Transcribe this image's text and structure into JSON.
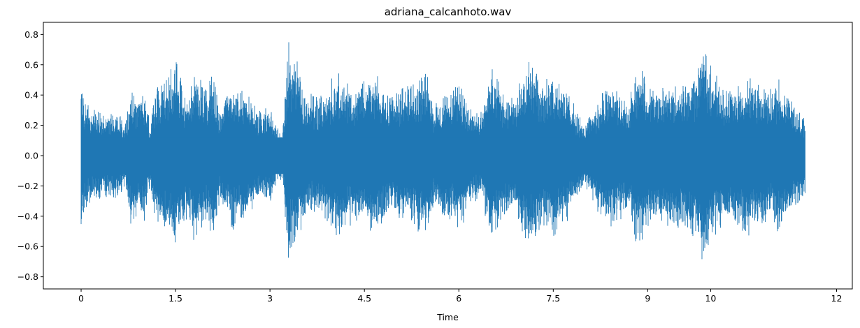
{
  "chart_data": {
    "type": "area",
    "title": "adriana_calcanhoto.wav",
    "xlabel": "Time",
    "ylabel": "",
    "xlim": [
      -0.6,
      12.25
    ],
    "ylim": [
      -0.88,
      0.88
    ],
    "xticks": [
      0,
      1.5,
      3,
      4.5,
      6,
      7.5,
      9,
      10,
      12
    ],
    "xtick_labels": [
      "0",
      "1.5",
      "3",
      "4.5",
      "6",
      "7.5",
      "9",
      "10",
      "12"
    ],
    "yticks": [
      0.8,
      0.6,
      0.4,
      0.2,
      0.0,
      -0.2,
      -0.4,
      -0.6,
      -0.8
    ],
    "ytick_labels": [
      "0.8",
      "0.6",
      "0.4",
      "0.2",
      "0.0",
      "−0.2",
      "−0.4",
      "−0.6",
      "−0.8"
    ],
    "color": "#1f77b4",
    "grid": false,
    "series": [
      {
        "x": [
          0.0,
          0.1,
          0.3,
          0.5,
          0.7,
          0.8,
          0.85,
          1.0,
          1.1,
          1.15,
          1.3,
          1.5,
          1.6,
          1.7,
          1.8,
          2.0,
          2.1,
          2.2,
          2.4,
          2.5,
          2.7,
          2.8,
          3.0,
          3.1,
          3.2,
          3.3,
          3.35,
          3.4,
          3.5,
          3.7,
          3.9,
          4.1,
          4.3,
          4.5,
          4.7,
          4.9,
          5.1,
          5.3,
          5.5,
          5.6,
          5.8,
          6.0,
          6.2,
          6.3,
          6.35,
          6.5,
          6.7,
          6.9,
          7.1,
          7.3,
          7.5,
          7.7,
          7.9,
          8.0,
          8.1,
          8.3,
          8.5,
          8.7,
          8.8,
          8.9,
          9.0,
          9.2,
          9.4,
          9.6,
          9.8,
          9.9,
          10.0,
          10.2,
          10.4,
          10.6,
          10.8,
          11.0,
          11.1,
          11.2,
          11.3,
          11.5
        ],
        "upper": [
          0.5,
          0.35,
          0.3,
          0.3,
          0.25,
          0.5,
          0.4,
          0.45,
          0.2,
          0.45,
          0.5,
          0.65,
          0.5,
          0.4,
          0.6,
          0.45,
          0.6,
          0.3,
          0.5,
          0.45,
          0.4,
          0.3,
          0.35,
          0.2,
          0.15,
          0.8,
          0.6,
          0.7,
          0.5,
          0.4,
          0.45,
          0.6,
          0.45,
          0.5,
          0.55,
          0.4,
          0.45,
          0.5,
          0.55,
          0.35,
          0.45,
          0.5,
          0.35,
          0.3,
          0.3,
          0.6,
          0.45,
          0.4,
          0.65,
          0.5,
          0.55,
          0.45,
          0.3,
          0.2,
          0.3,
          0.45,
          0.5,
          0.35,
          0.6,
          0.6,
          0.5,
          0.45,
          0.55,
          0.5,
          0.6,
          0.8,
          0.6,
          0.45,
          0.5,
          0.55,
          0.5,
          0.45,
          0.55,
          0.45,
          0.4,
          0.25
        ],
        "lower": [
          -0.5,
          -0.35,
          -0.3,
          -0.3,
          -0.25,
          -0.5,
          -0.4,
          -0.45,
          -0.2,
          -0.45,
          -0.5,
          -0.65,
          -0.5,
          -0.4,
          -0.6,
          -0.45,
          -0.6,
          -0.3,
          -0.5,
          -0.45,
          -0.4,
          -0.3,
          -0.35,
          -0.2,
          -0.15,
          -0.8,
          -0.6,
          -0.7,
          -0.5,
          -0.4,
          -0.45,
          -0.6,
          -0.45,
          -0.5,
          -0.55,
          -0.4,
          -0.45,
          -0.5,
          -0.55,
          -0.35,
          -0.45,
          -0.5,
          -0.35,
          -0.3,
          -0.3,
          -0.6,
          -0.45,
          -0.4,
          -0.65,
          -0.5,
          -0.55,
          -0.45,
          -0.3,
          -0.2,
          -0.3,
          -0.45,
          -0.5,
          -0.35,
          -0.6,
          -0.6,
          -0.5,
          -0.45,
          -0.55,
          -0.5,
          -0.6,
          -0.8,
          -0.6,
          -0.45,
          -0.5,
          -0.55,
          -0.5,
          -0.45,
          -0.55,
          -0.45,
          -0.4,
          -0.25
        ]
      }
    ]
  }
}
